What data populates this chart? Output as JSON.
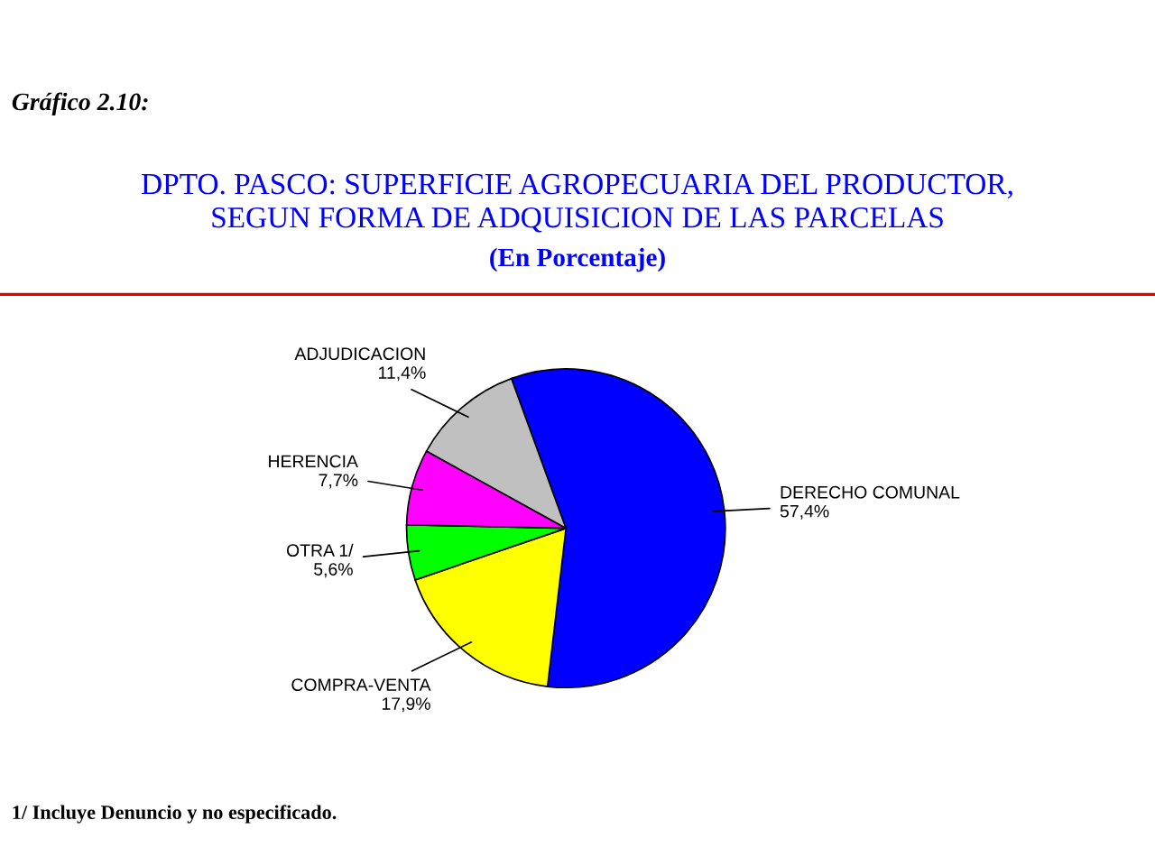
{
  "chart_data": {
    "type": "pie",
    "title": "DPTO. PASCO: SUPERFICIE AGROPECUARIA DEL PRODUCTOR,\nSEGUN FORMA DE ADQUISICION DE LAS PARCELAS",
    "subtitle": "(En Porcentaje)",
    "annotations": [
      "Gráfico 2.10:",
      "1/ Incluye Denuncio y no especificado."
    ],
    "categories": [
      "DERECHO COMUNAL",
      "COMPRA-VENTA",
      "OTRA 1/",
      "HERENCIA",
      "ADJUDICACION"
    ],
    "values": [
      57.4,
      17.9,
      5.6,
      7.7,
      11.4
    ],
    "value_labels": [
      "57,4%",
      "17,9%",
      "5,6%",
      "7,7%",
      "11,4%"
    ],
    "colors": [
      "#0000ff",
      "#ffff00",
      "#00ff00",
      "#ff00ff",
      "#c0c0c0"
    ]
  }
}
